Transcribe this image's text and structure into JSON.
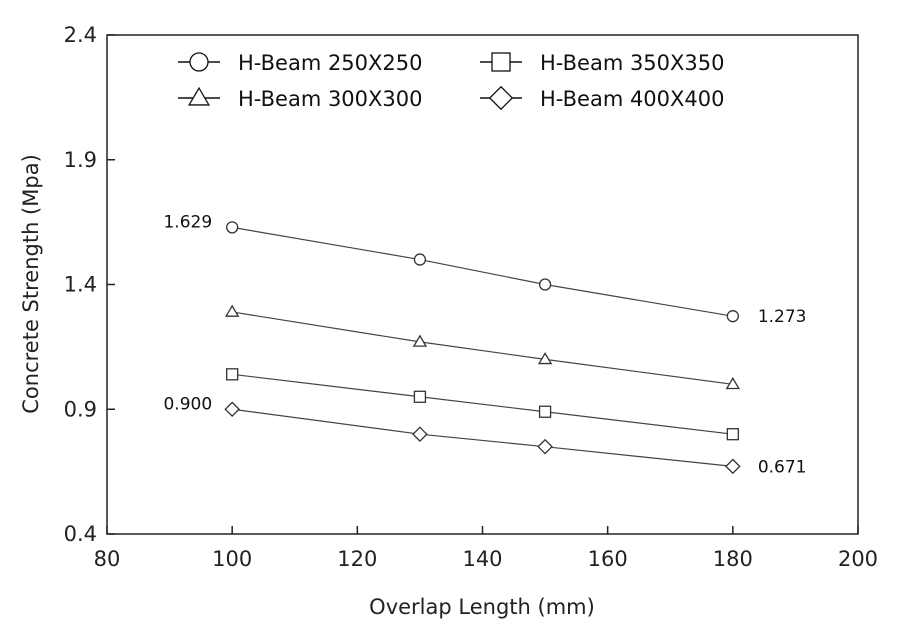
{
  "chart_data": {
    "type": "line",
    "xlabel": "Overlap Length (mm)",
    "ylabel": "Concrete Strength (Mpa)",
    "xlim": [
      80,
      200
    ],
    "ylim": [
      0.4,
      2.4
    ],
    "xticks": [
      "80",
      "100",
      "120",
      "140",
      "160",
      "180",
      "200"
    ],
    "yticks": [
      "0.4",
      "0.9",
      "1.4",
      "1.9",
      "2.4"
    ],
    "grid": false,
    "legend_position": "top",
    "x": [
      100,
      130,
      150,
      180
    ],
    "series": [
      {
        "name": "H-Beam 250X250",
        "marker": "circle",
        "values": [
          1.629,
          1.5,
          1.4,
          1.273
        ]
      },
      {
        "name": "H-Beam 300X300",
        "marker": "triangle",
        "values": [
          1.29,
          1.17,
          1.1,
          1.0
        ]
      },
      {
        "name": "H-Beam 350X350",
        "marker": "square",
        "values": [
          1.04,
          0.95,
          0.89,
          0.8
        ]
      },
      {
        "name": "H-Beam 400X400",
        "marker": "diamond",
        "values": [
          0.9,
          0.8,
          0.75,
          0.671
        ]
      }
    ],
    "annotations": [
      {
        "text": "1.629",
        "series": 0,
        "point": 0
      },
      {
        "text": "1.273",
        "series": 0,
        "point": 3
      },
      {
        "text": "0.900",
        "series": 3,
        "point": 0
      },
      {
        "text": "0.671",
        "series": 3,
        "point": 3
      }
    ]
  }
}
